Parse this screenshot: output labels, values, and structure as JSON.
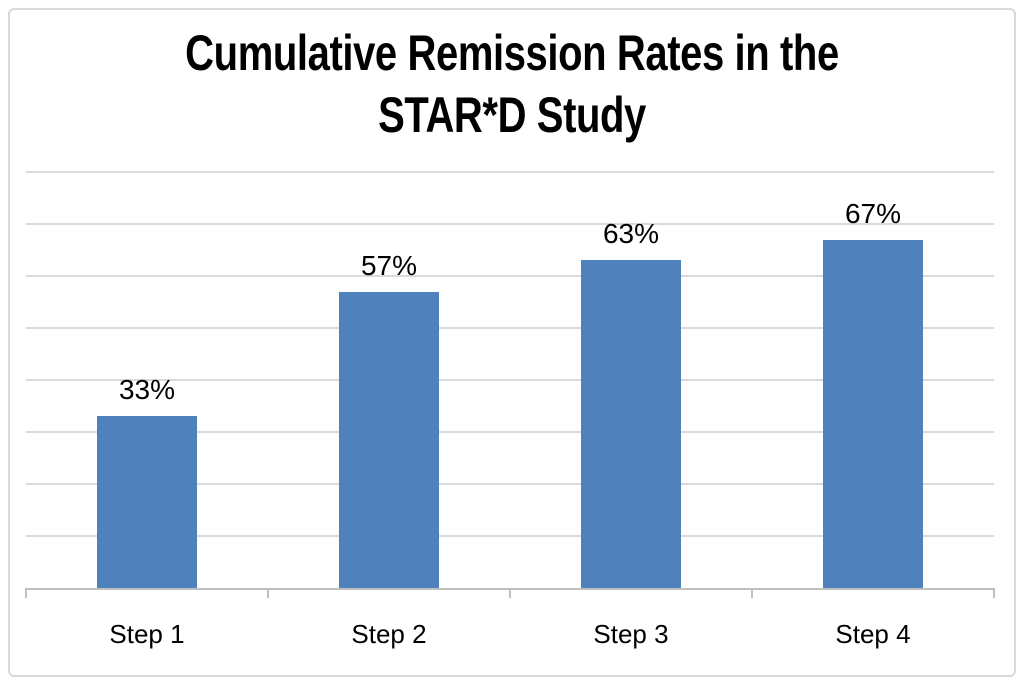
{
  "chart_data": {
    "type": "bar",
    "title": "Cumulative Remission Rates in the STAR*D Study",
    "title_lines": [
      "Cumulative Remission Rates in the",
      "STAR*D Study"
    ],
    "categories": [
      "Step 1",
      "Step 2",
      "Step 3",
      "Step 4"
    ],
    "values": [
      33,
      57,
      63,
      67
    ],
    "value_labels": [
      "33%",
      "57%",
      "63%",
      "67%"
    ],
    "xlabel": "",
    "ylabel": "",
    "ylim": [
      0,
      80
    ],
    "gridline_step": 10,
    "grid": true,
    "legend": false,
    "y_axis_labels_visible": false,
    "colors": {
      "bar": "#4F81BD",
      "gridline": "#DADADA",
      "axis": "#BFBFBF",
      "title_text": "#000000",
      "label_text": "#000000",
      "frame_border": "#D9D9D9",
      "background": "#FFFFFF"
    }
  }
}
